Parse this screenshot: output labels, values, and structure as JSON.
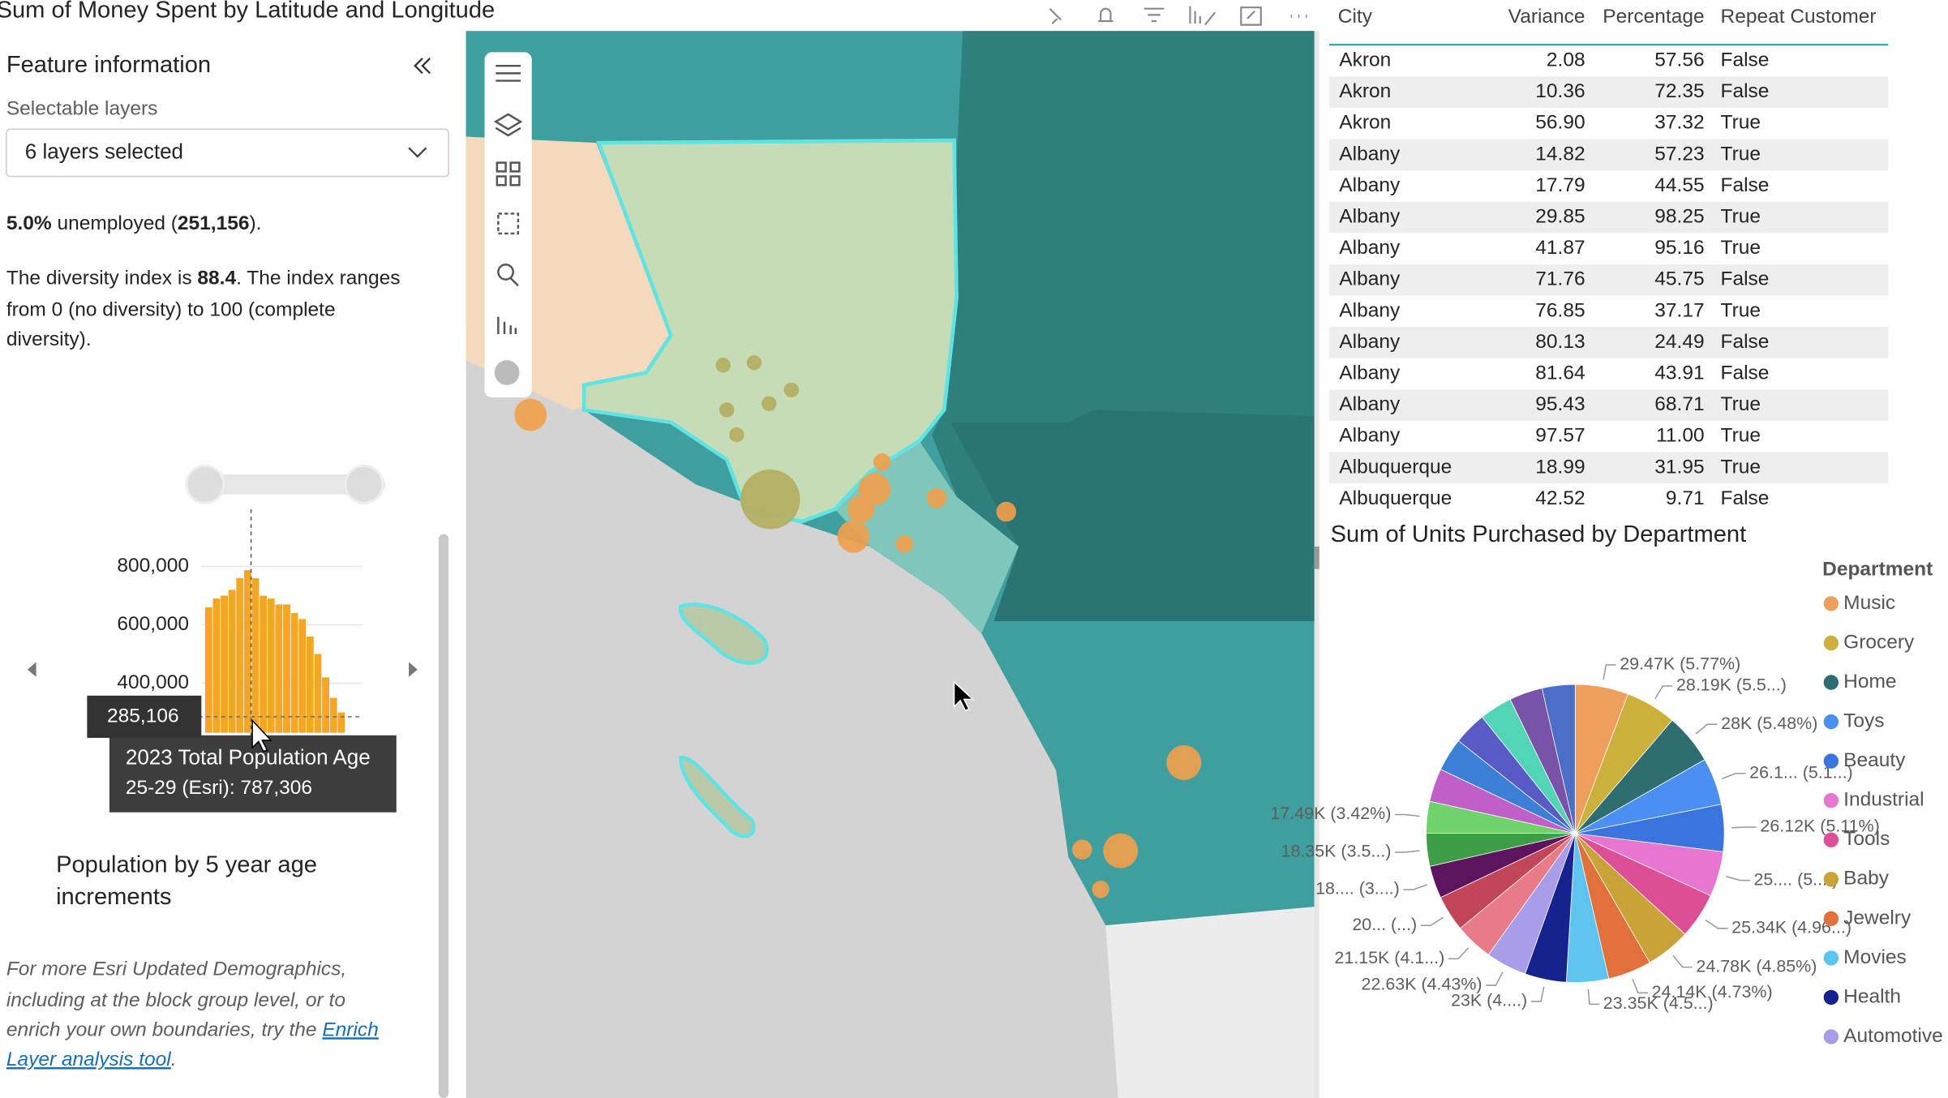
{
  "header": {
    "title": "Sum of Money Spent by Latitude and Longitude"
  },
  "feature_panel": {
    "title": "Feature information",
    "layers_label": "Selectable layers",
    "layers_dropdown": "6 layers selected",
    "unemployed": [
      "5.0%",
      " unemployed (",
      "251,156",
      ")."
    ],
    "diversity": [
      "The diversity index is ",
      "88.4",
      ". The index ranges",
      "from 0 (no diversity) to 100 (complete",
      "diversity)."
    ],
    "histogram": {
      "type": "bar",
      "values": [
        660000,
        690000,
        700000,
        720000,
        760000,
        787306,
        760000,
        700000,
        690000,
        670000,
        670000,
        640000,
        620000,
        560000,
        500000,
        420000,
        350000,
        300000
      ],
      "color": "#f5a623",
      "ylim": [
        230000,
        850000
      ],
      "yticks": [
        {
          "value": 400000,
          "label": "400,000"
        },
        {
          "value": 600000,
          "label": "600,000"
        },
        {
          "value": 800000,
          "label": "800,000"
        }
      ],
      "grid": true,
      "marker": {
        "value": 285106,
        "label": "285,106"
      },
      "tooltip": [
        "2023 Total Population Age",
        "25-29 (Esri): 787,306"
      ]
    },
    "caption": [
      "Population by 5 year age",
      "increments"
    ],
    "footer": [
      "For more Esri Updated Demographics,",
      "including at the block group level, or to",
      "enrich your own boundaries, try the ",
      "Enrich",
      "Layer analysis tool",
      "."
    ]
  },
  "table": {
    "columns": [
      "City",
      "Variance",
      "Percentage",
      "Repeat Customer"
    ],
    "rows": [
      [
        "Akron",
        "2.08",
        "57.56",
        "False"
      ],
      [
        "Akron",
        "10.36",
        "72.35",
        "False"
      ],
      [
        "Akron",
        "56.90",
        "37.32",
        "True"
      ],
      [
        "Albany",
        "14.82",
        "57.23",
        "True"
      ],
      [
        "Albany",
        "17.79",
        "44.55",
        "False"
      ],
      [
        "Albany",
        "29.85",
        "98.25",
        "True"
      ],
      [
        "Albany",
        "41.87",
        "95.16",
        "True"
      ],
      [
        "Albany",
        "71.76",
        "45.75",
        "False"
      ],
      [
        "Albany",
        "76.85",
        "37.17",
        "True"
      ],
      [
        "Albany",
        "80.13",
        "24.49",
        "False"
      ],
      [
        "Albany",
        "81.64",
        "43.91",
        "False"
      ],
      [
        "Albany",
        "95.43",
        "68.71",
        "True"
      ],
      [
        "Albany",
        "97.57",
        "11.00",
        "True"
      ],
      [
        "Albuquerque",
        "18.99",
        "31.95",
        "True"
      ],
      [
        "Albuquerque",
        "42.52",
        "9.71",
        "False"
      ]
    ]
  },
  "chart_data": {
    "type": "pie",
    "title": "Sum of Units Purchased by Department",
    "legend_title": "Department",
    "categories": [
      "Music",
      "Grocery",
      "Home",
      "Toys",
      "Beauty",
      "Industrial",
      "Tools",
      "Baby",
      "Jewelry",
      "Movies",
      "Health",
      "Automotive",
      null,
      null,
      null,
      null,
      null,
      null,
      null,
      null,
      null,
      null,
      null
    ],
    "values": [
      29470,
      28190,
      28000,
      26100,
      26120,
      25000,
      25340,
      24780,
      24140,
      23350,
      23000,
      22630,
      21150,
      20000,
      18000,
      18350,
      17490,
      18500,
      18400,
      18300,
      18200,
      18400,
      18300
    ],
    "value_labels": [
      "29.47K (5.77%)",
      "28.19K (5.5...)",
      "28K (5.48%)",
      "26.1... (5.1...)",
      "26.12K (5.11%)",
      "25.... (5....)",
      "25.34K (4.96...)",
      "24.78K (4.85%)",
      "24.14K (4.73%)",
      "23.35K (4.5...)",
      "23K (4....)",
      "22.63K (4.43%)",
      "21.15K (4.1...)",
      "20... (...)",
      "18.... (3....)",
      "18.35K (3.5...)",
      "17.49K (3.42%)",
      null,
      null,
      null,
      null,
      null,
      null
    ],
    "colors": [
      "#ef9f5c",
      "#cdb03c",
      "#2f6d70",
      "#4b8ff0",
      "#3a74de",
      "#e676cf",
      "#dc4f97",
      "#c9a238",
      "#e0703c",
      "#5ec3ee",
      "#16238f",
      "#a99de9",
      "#e87b86",
      "#c2465a",
      "#5c145f",
      "#3e9e45",
      "#6fd26b",
      "#c05fc8",
      "#3c7fd6",
      "#5a5ac6",
      "#52d5b6",
      "#7a52a8",
      "#4b6fc8"
    ],
    "legend": "right"
  }
}
